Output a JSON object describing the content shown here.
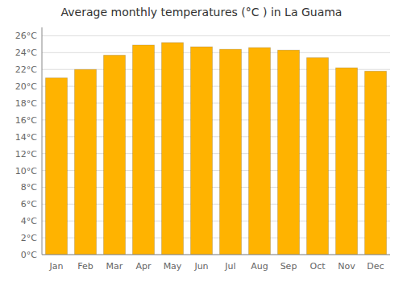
{
  "chart_data": {
    "type": "bar",
    "title": "Average monthly temperatures (°C ) in La Guama",
    "categories": [
      "Jan",
      "Feb",
      "Mar",
      "Apr",
      "May",
      "Jun",
      "Jul",
      "Aug",
      "Sep",
      "Oct",
      "Nov",
      "Dec"
    ],
    "values": [
      21.0,
      22.0,
      23.7,
      24.9,
      25.2,
      24.7,
      24.4,
      24.6,
      24.3,
      23.4,
      22.2,
      21.8
    ],
    "color": "#FFB300",
    "ylim": [
      0,
      27
    ],
    "yticks": [
      {
        "value": 0,
        "label": "0°C"
      },
      {
        "value": 2,
        "label": "2°C"
      },
      {
        "value": 4,
        "label": "4°C"
      },
      {
        "value": 6,
        "label": "6°C"
      },
      {
        "value": 8,
        "label": "8°C"
      },
      {
        "value": 10,
        "label": "10°C"
      },
      {
        "value": 12,
        "label": "12°C"
      },
      {
        "value": 14,
        "label": "14°C"
      },
      {
        "value": 16,
        "label": "16°C"
      },
      {
        "value": 18,
        "label": "18°C"
      },
      {
        "value": 20,
        "label": "20°C"
      },
      {
        "value": 22,
        "label": "22°C"
      },
      {
        "value": 24,
        "label": "24°C"
      },
      {
        "value": 26,
        "label": "26°C"
      }
    ],
    "grid": true
  }
}
